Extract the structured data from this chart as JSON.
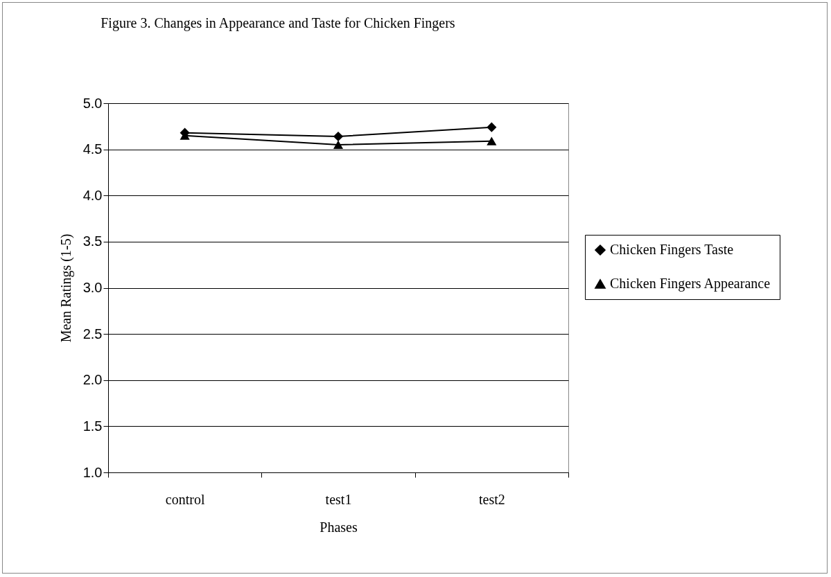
{
  "chart_data": {
    "type": "line",
    "title": "Figure 3. Changes in Appearance and Taste for Chicken Fingers",
    "xlabel": "Phases",
    "ylabel": "Mean Ratings (1-5)",
    "categories": [
      "control",
      "test1",
      "test2"
    ],
    "series": [
      {
        "name": "Chicken Fingers Taste",
        "color": "#000000",
        "marker": "diamond",
        "values": [
          4.68,
          4.64,
          4.74
        ]
      },
      {
        "name": "Chicken Fingers Appearance",
        "color": "#000000",
        "marker": "triangle",
        "values": [
          4.65,
          4.55,
          4.59
        ]
      }
    ],
    "ylim": [
      1.0,
      5.0
    ],
    "yticks": [
      {
        "value": 1,
        "label": "1.0"
      },
      {
        "value": 1.5,
        "label": "1.5"
      },
      {
        "value": 2,
        "label": "2.0"
      },
      {
        "value": 2.5,
        "label": "2.5"
      },
      {
        "value": 3,
        "label": "3.0"
      },
      {
        "value": 3.5,
        "label": "3.5"
      },
      {
        "value": 4,
        "label": "4.0"
      },
      {
        "value": 4.5,
        "label": "4.5"
      },
      {
        "value": 5,
        "label": "5.0"
      }
    ],
    "grid": "y",
    "legend": "right",
    "line_style": "solid"
  }
}
